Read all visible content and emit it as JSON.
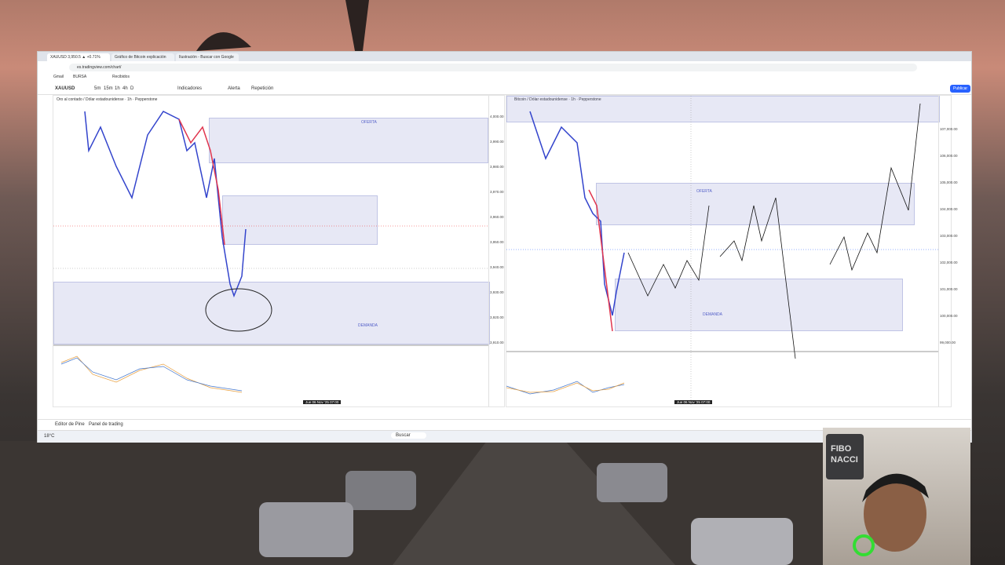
{
  "browser": {
    "tabs": [
      "XAUUSD 3,950.5 ▲ +0.71%",
      "Gráfico de Bitcoin explicación",
      "Ilustración - Buscar con Google"
    ],
    "address": "es.tradingview.com/chart/",
    "bookmarks": [
      "Gmail",
      "BURSA",
      "Recibidos"
    ]
  },
  "toolbar": {
    "symbol": "XAUUSD",
    "intervals": [
      "5m",
      "15m",
      "1h",
      "4h",
      "D"
    ],
    "items": [
      "Indicadores",
      "Alerta",
      "Repetición"
    ],
    "publish": "Publicar"
  },
  "left_chart": {
    "title": "Oro al contado / Dólar estadounidense · 1h · Pepperstone",
    "zones": [
      "OFERTA",
      "DEMANDA"
    ],
    "price_labels": [
      "4,000.00",
      "3,990.00",
      "3,980.00",
      "3,970.00",
      "3,960.00",
      "3,950.00",
      "3,940.00",
      "3,930.00",
      "3,920.00",
      "3,910.00"
    ],
    "crosshair_date": "Jue 06 Nov '25  07:00"
  },
  "right_chart": {
    "title": "Bitcoin / Dólar estadounidense · 1h · Pepperstone",
    "zones": [
      "OFERTA",
      "DEMANDA"
    ],
    "price_labels": [
      "107,000.00",
      "106,000.00",
      "105,000.00",
      "104,000.00",
      "103,000.00",
      "102,000.00",
      "101,000.00",
      "100,000.00",
      "99,000.00"
    ],
    "crosshair_date": "Jue 06 Nov '25  07:00"
  },
  "bottom_panel": [
    "Editor de Pine",
    "Panel de trading"
  ],
  "taskbar": {
    "search": "Buscar",
    "weather": "18°C"
  },
  "webcam": {
    "cap_text": "FIBO NACCI"
  }
}
